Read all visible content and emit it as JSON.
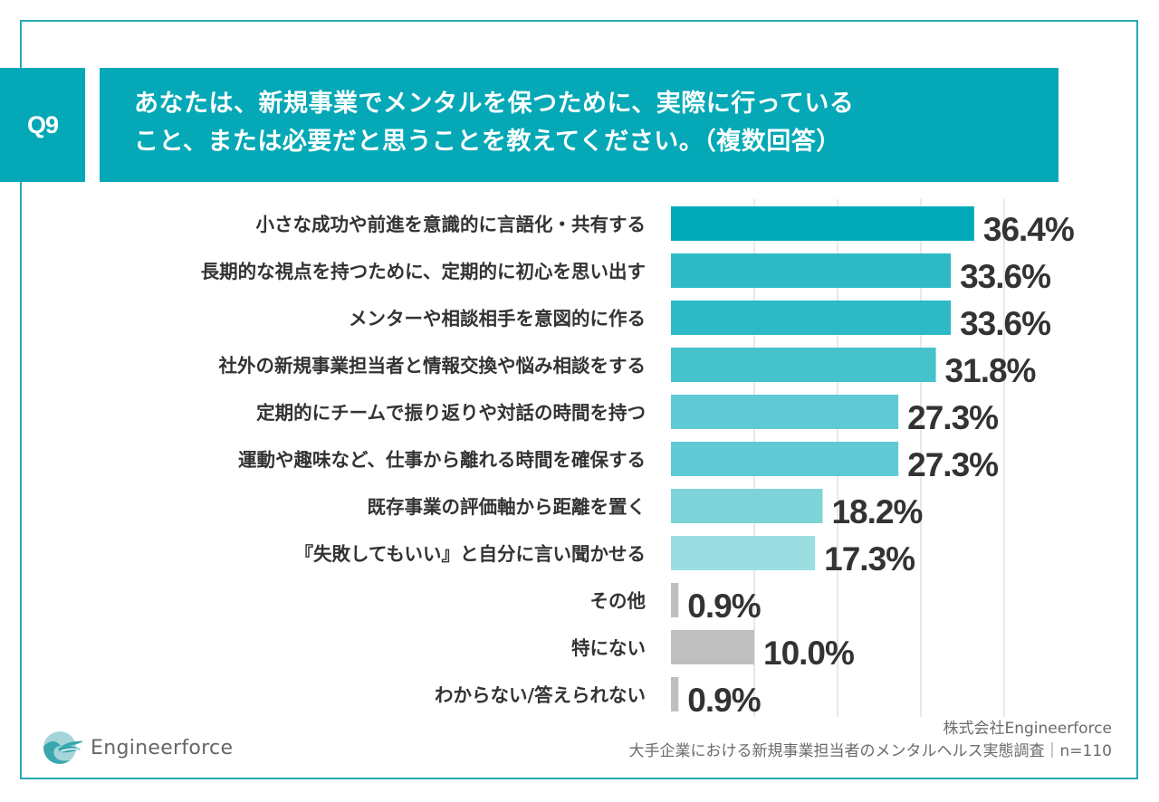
{
  "question": {
    "number": "Q9",
    "title_line1": "あなたは、新規事業でメンタルを保つために、実際に行っている",
    "title_line2": "こと、または必要だと思うことを教えてください。（複数回答）"
  },
  "colors": {
    "brand": "#04a8b6",
    "frame": "#2aa9b3",
    "gray_bar": "#bfbfbf",
    "text": "#333333"
  },
  "chart_data": {
    "type": "bar",
    "orientation": "horizontal",
    "title": "あなたは、新規事業でメンタルを保つために、実際に行っていること、または必要だと思うことを教えてください。（複数回答）",
    "xlabel": "",
    "ylabel": "",
    "unit": "%",
    "xlim": [
      0,
      40
    ],
    "grid": true,
    "gridlines": [
      10,
      20,
      30,
      40
    ],
    "categories": [
      "小さな成功や前進を意識的に言語化・共有する",
      "長期的な視点を持つために、定期的に初心を思い出す",
      "メンターや相談相手を意図的に作る",
      "社外の新規事業担当者と情報交換や悩み相談をする",
      "定期的にチームで振り返りや対話の時間を持つ",
      "運動や趣味など、仕事から離れる時間を確保する",
      "既存事業の評価軸から距離を置く",
      "『失敗してもいい』と自分に言い聞かせる",
      "その他",
      "特にない",
      "わからない/答えられない"
    ],
    "values": [
      36.4,
      33.6,
      33.6,
      31.8,
      27.3,
      27.3,
      18.2,
      17.3,
      0.9,
      10.0,
      0.9
    ],
    "value_labels": [
      "36.4%",
      "33.6%",
      "33.6%",
      "31.8%",
      "27.3%",
      "27.3%",
      "18.2%",
      "17.3%",
      "0.9%",
      "10.0%",
      "0.9%"
    ],
    "bar_colors": [
      "#00a9b8",
      "#2eb9c6",
      "#2eb9c6",
      "#45c2cb",
      "#5fcad4",
      "#5fcad4",
      "#7dd3d8",
      "#9bdee1",
      "#bfbfbf",
      "#bfbfbf",
      "#bfbfbf"
    ]
  },
  "footer": {
    "company": "株式会社Engineerforce",
    "survey": "大手企業における新規事業担当者のメンタルヘルス実態調査｜n=110"
  },
  "logo": {
    "text": "Engineerforce",
    "icon": "engineerforce-logo-icon"
  }
}
